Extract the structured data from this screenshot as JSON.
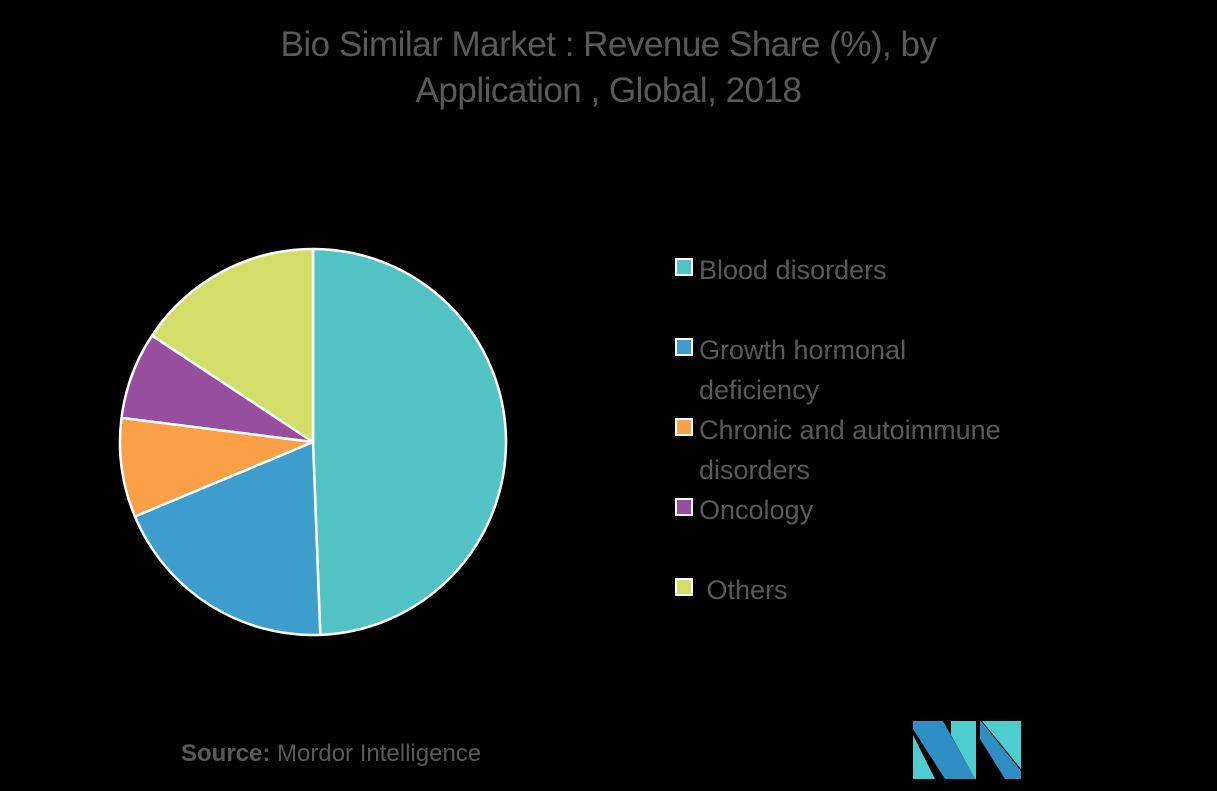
{
  "title_line1": "Bio Similar Market : Revenue Share (%), by",
  "title_line2": "Application , Global, 2018",
  "source_label": "Source:",
  "source_value": "Mordor Intelligence",
  "chart_data": {
    "type": "pie",
    "title": "Bio Similar Market : Revenue Share (%), by Application , Global, 2018",
    "categories": [
      "Blood disorders",
      "Growth hormonal deficiency",
      "Chronic and autoimmune disorders",
      "Oncology",
      "Others"
    ],
    "values": [
      49.4,
      19.3,
      8.3,
      7.3,
      15.7
    ],
    "colors": [
      "#52C3C5",
      "#3D9ECE",
      "#FBA046",
      "#974E9E",
      "#D2DE68"
    ],
    "start_angle": "12 o'clock, clockwise",
    "legend_position": "right",
    "units": "%"
  },
  "legend": {
    "items": [
      {
        "label": "Blood disorders",
        "color": "#52C3C5"
      },
      {
        "label": "Growth hormonal deficiency",
        "color": "#3D9ECE"
      },
      {
        "label": "Chronic and autoimmune disorders",
        "color": "#FBA046"
      },
      {
        "label": "Oncology",
        "color": "#974E9E"
      },
      {
        "label": " Others",
        "color": "#D2DE68"
      }
    ]
  },
  "logo": {
    "name": "Mordor Intelligence logo",
    "colors": [
      "#2E8FC4",
      "#4ECDD1"
    ]
  }
}
